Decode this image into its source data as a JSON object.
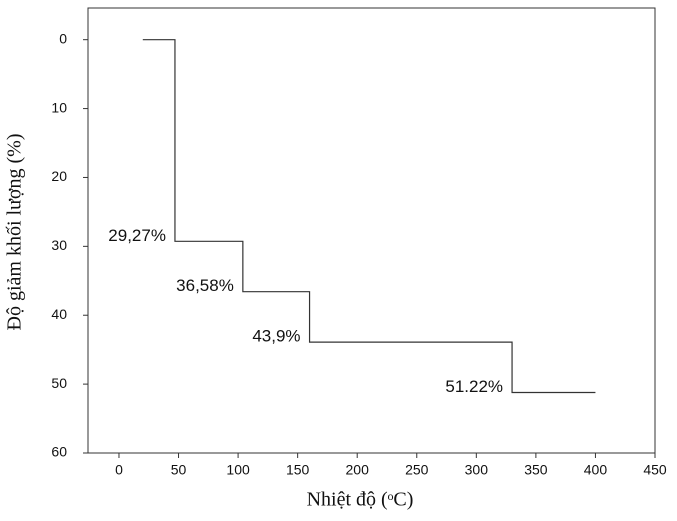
{
  "chart_data": {
    "type": "line",
    "x_label": "Nhiệt độ (ᵒC)",
    "y_label": "Độ giảm khối lượng (%)",
    "x": [
      20,
      47,
      47,
      104,
      104,
      160,
      160,
      330,
      330,
      400
    ],
    "series": [
      {
        "color": "#333333",
        "values": [
          0,
          0,
          29.27,
          29.27,
          36.58,
          36.58,
          43.9,
          43.9,
          51.22,
          51.22
        ],
        "value_labels": [
          null,
          null,
          "29,27%",
          null,
          "36,58%",
          null,
          "43,9%",
          null,
          "51.22%",
          null
        ]
      }
    ],
    "xlim": [
      -26,
      450
    ],
    "xticks": [
      0,
      50,
      100,
      150,
      200,
      250,
      300,
      350,
      400,
      450
    ],
    "ylim": [
      -4.6,
      60
    ],
    "yticks": [
      0,
      10,
      20,
      30,
      40,
      50,
      60
    ],
    "y_inverted": true,
    "grid": false
  }
}
